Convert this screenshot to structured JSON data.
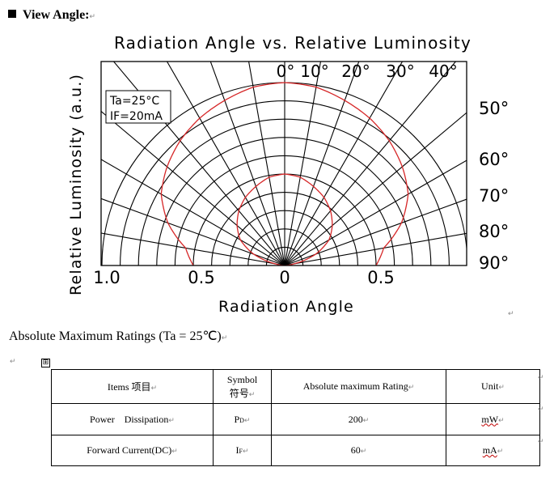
{
  "view_angle": {
    "heading": "View Angle:"
  },
  "chart_data": {
    "type": "polar",
    "title": "Radiation Angle vs. Relative Luminosity",
    "xlabel": "Radiation Angle",
    "ylabel": "Relative Luminosity (a.u.)",
    "conditions": [
      "Ta=25°C",
      "IF=20mA"
    ],
    "x_tick_labels": [
      "1.0",
      "0.5",
      "0",
      "0.5"
    ],
    "angle_labels_top": [
      "0°",
      "10°",
      "20°",
      "30°",
      "40°"
    ],
    "angle_labels_right": [
      "50°",
      "60°",
      "70°",
      "80°",
      "90°"
    ],
    "radial_range": [
      0,
      1.0
    ],
    "angle_range": [
      -90,
      90
    ],
    "grid": true,
    "series": [
      {
        "color": "#d62728",
        "angles": [
          0,
          10,
          20,
          30,
          40,
          50,
          60,
          70,
          80,
          90
        ],
        "values": [
          1.0,
          0.99,
          0.96,
          0.93,
          0.89,
          0.84,
          0.78,
          0.68,
          0.55,
          0.5
        ]
      }
    ]
  },
  "ratings": {
    "title": "Absolute Maximum Ratings (Ta = 25℃)",
    "headers": {
      "items": "Items 项目",
      "symbol_1": "Symbol",
      "symbol_2": "符号",
      "rating": "Absolute maximum Rating",
      "unit": "Unit"
    },
    "rows": [
      {
        "item": "Power    Dissipation",
        "symbol_main": "P",
        "symbol_sub": "D",
        "rating": "200",
        "unit": "mW"
      },
      {
        "item": "Forward Current(DC)",
        "symbol_main": "I",
        "symbol_sub": "F",
        "rating": "60",
        "unit": "mA"
      }
    ]
  },
  "marks": {
    "paragraph": "↵",
    "table_handle": "⊞"
  }
}
